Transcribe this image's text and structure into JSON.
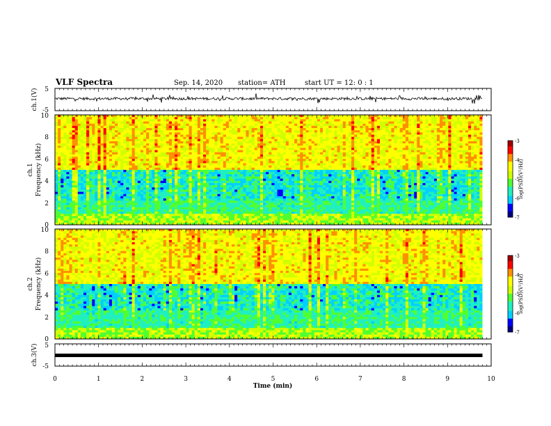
{
  "header": {
    "title": "VLF Spectra",
    "date": "Sep. 14, 2020",
    "station": "station= ATH",
    "start": "start UT =  12: 0  : 1"
  },
  "colors": {
    "colormap": [
      "#00007f",
      "#0000ff",
      "#00d0ff",
      "#20f0c0",
      "#50ff30",
      "#d0ff00",
      "#ffff00",
      "#ff9000",
      "#ff0000",
      "#9f0000"
    ],
    "trace": "#000000",
    "axis": "#000000"
  },
  "chart_data": [
    {
      "id": "ch1-waveform",
      "type": "line",
      "ylabel": "ch.1(V)",
      "ylim": [
        -5,
        5
      ],
      "yticks": [
        "5",
        "-5"
      ],
      "xlim": [
        0,
        10
      ],
      "description_of_signal": "noisy waveform near 0 V with spikes",
      "baseline": 0.4,
      "amplitude": 1.2
    },
    {
      "id": "ch1-spectrogram",
      "type": "heatmap",
      "ylabel": "ch.1\nFrequency (kHz)",
      "xlim": [
        0,
        10
      ],
      "ylim": [
        0,
        10
      ],
      "yticks": [
        "0",
        "2",
        "4",
        "6",
        "8",
        "10"
      ],
      "colorbar": {
        "label": "log(PSD)(V²/Hz)",
        "range": [
          -7,
          -3
        ],
        "ticks": [
          "-3",
          "-4",
          "-5",
          "-6",
          "-7"
        ]
      }
    },
    {
      "id": "ch2-spectrogram",
      "type": "heatmap",
      "ylabel": "ch.2\nFrequency (kHz)",
      "xlim": [
        0,
        10
      ],
      "ylim": [
        0,
        10
      ],
      "yticks": [
        "0",
        "2",
        "4",
        "6",
        "8",
        "10"
      ],
      "colorbar": {
        "label": "log(PSD)(V²/Hz)",
        "range": [
          -7,
          -3
        ],
        "ticks": [
          "-3",
          "-4",
          "-5",
          "-6",
          "-7"
        ]
      }
    },
    {
      "id": "ch3-waveform",
      "type": "line",
      "ylabel": "ch.3(V)",
      "ylim": [
        -5,
        5
      ],
      "yticks": [
        "5",
        "-5"
      ],
      "xlim": [
        0,
        10
      ],
      "baseline": 0.0,
      "amplitude": 0.0
    }
  ],
  "xaxis": {
    "label": "Time (min)",
    "ticks": [
      "0",
      "1",
      "2",
      "3",
      "4",
      "5",
      "6",
      "7",
      "8",
      "9",
      "10"
    ],
    "data_end_min": 9.8
  }
}
